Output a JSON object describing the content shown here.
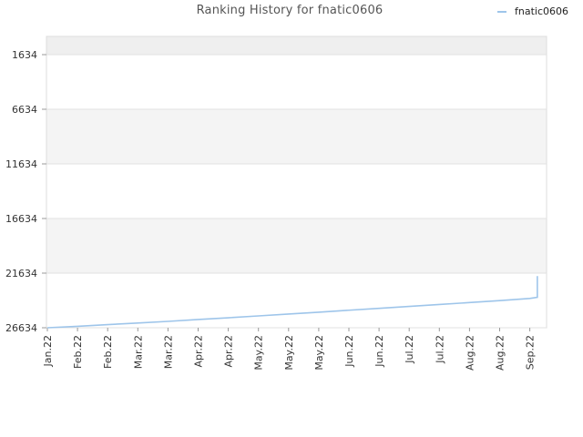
{
  "chart_data": {
    "type": "line",
    "title": "Ranking History for fnatic0606",
    "xlabel": "",
    "ylabel": "",
    "y_inverted": true,
    "ylim": [
      26634,
      1634
    ],
    "y_ticks": [
      1634,
      6634,
      11634,
      16634,
      21634,
      26634
    ],
    "x_ticks": [
      "Jan.22",
      "Feb.22",
      "Feb.22",
      "Mar.22",
      "Mar.22",
      "Apr.22",
      "Apr.22",
      "May.22",
      "May.22",
      "May.22",
      "Jun.22",
      "Jun.22",
      "Jul.22",
      "Jul.22",
      "Aug.22",
      "Aug.22",
      "Sep.22"
    ],
    "legend_position": "top-right",
    "grid": true,
    "series": [
      {
        "name": "fnatic0606",
        "color": "#9ec5ea",
        "x": [
          0,
          1,
          2,
          3,
          4,
          5,
          6,
          7,
          8,
          9,
          10,
          11,
          12,
          13,
          14,
          15,
          16,
          16.25,
          16.25
        ],
        "values": [
          26634,
          26500,
          26350,
          26200,
          26050,
          25880,
          25720,
          25550,
          25380,
          25210,
          25030,
          24860,
          24680,
          24500,
          24330,
          24150,
          23950,
          23850,
          21900
        ]
      }
    ]
  }
}
